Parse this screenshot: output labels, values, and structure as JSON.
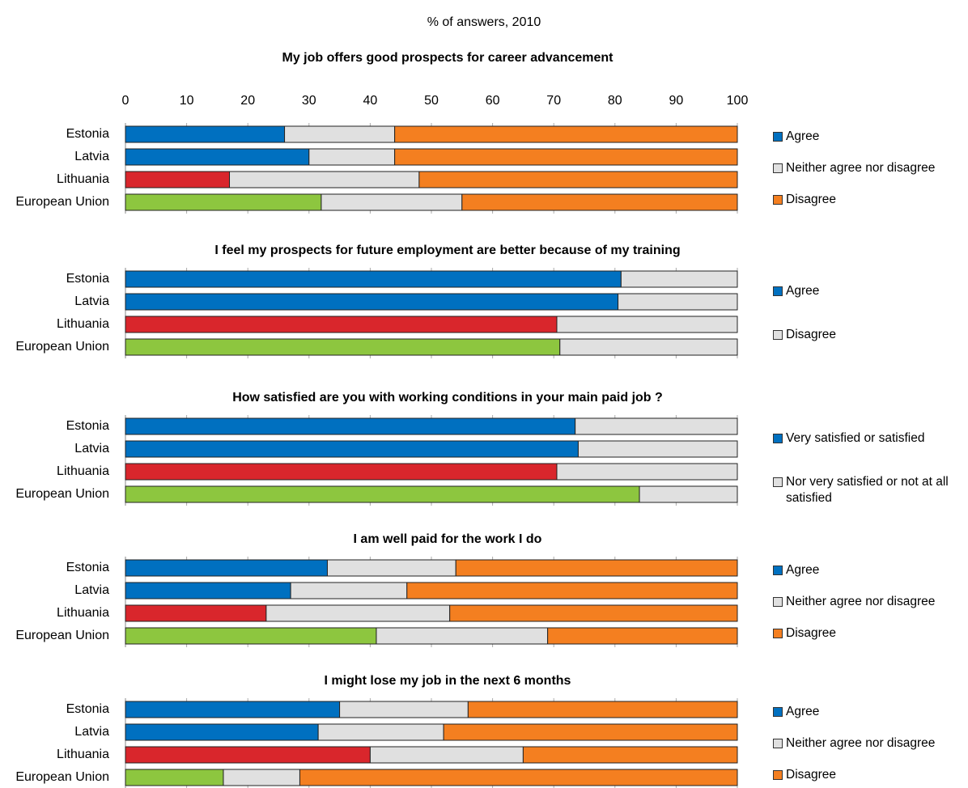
{
  "title": "% of answers, 2010",
  "chart_data": [
    {
      "type": "bar",
      "orientation": "horizontal",
      "stacked": true,
      "title": "My job offers good prospects for career advancement",
      "categories": [
        "Estonia",
        "Latvia",
        "Lithuania",
        "European Union"
      ],
      "series": [
        {
          "name": "Agree",
          "color": "#0070c0",
          "colors": [
            "#0070c0",
            "#0070c0",
            "#d9262c",
            "#8dc63f"
          ],
          "values": [
            26,
            30,
            17,
            32
          ]
        },
        {
          "name": "Neither agree nor disagree",
          "color": "#e0e0e0",
          "values": [
            18,
            14,
            31,
            23
          ]
        },
        {
          "name": "Disagree",
          "color": "#f47f20",
          "values": [
            56,
            56,
            52,
            45
          ]
        }
      ],
      "xlim": [
        0,
        100
      ],
      "xticks": [
        0,
        10,
        20,
        30,
        40,
        50,
        60,
        70,
        80,
        90,
        100
      ],
      "xtick_labels": true
    },
    {
      "type": "bar",
      "orientation": "horizontal",
      "stacked": true,
      "title": "I feel my prospects for future employment are better because of my training",
      "categories": [
        "Estonia",
        "Latvia",
        "Lithuania",
        "European Union"
      ],
      "series": [
        {
          "name": "Agree",
          "color": "#0070c0",
          "colors": [
            "#0070c0",
            "#0070c0",
            "#d9262c",
            "#8dc63f"
          ],
          "values": [
            81,
            80.5,
            70.5,
            71
          ]
        },
        {
          "name": "Disagree",
          "color": "#e0e0e0",
          "values": [
            19,
            19.5,
            29.5,
            29
          ]
        }
      ],
      "xlim": [
        0,
        100
      ],
      "xticks": [
        0,
        10,
        20,
        30,
        40,
        50,
        60,
        70,
        80,
        90,
        100
      ],
      "xtick_labels": false
    },
    {
      "type": "bar",
      "orientation": "horizontal",
      "stacked": true,
      "title": "How satisfied are you with working conditions in your main paid job ?",
      "categories": [
        "Estonia",
        "Latvia",
        "Lithuania",
        "European Union"
      ],
      "series": [
        {
          "name": "Very satisfied or satisfied",
          "color": "#0070c0",
          "colors": [
            "#0070c0",
            "#0070c0",
            "#d9262c",
            "#8dc63f"
          ],
          "values": [
            73.5,
            74,
            70.5,
            84
          ]
        },
        {
          "name": "Nor very satisfied or not at all satisfied",
          "color": "#e0e0e0",
          "values": [
            26.5,
            26,
            29.5,
            16
          ]
        }
      ],
      "xlim": [
        0,
        100
      ],
      "xticks": [
        0,
        10,
        20,
        30,
        40,
        50,
        60,
        70,
        80,
        90,
        100
      ],
      "xtick_labels": false
    },
    {
      "type": "bar",
      "orientation": "horizontal",
      "stacked": true,
      "title": "I am well paid for the work I do",
      "categories": [
        "Estonia",
        "Latvia",
        "Lithuania",
        "European Union"
      ],
      "series": [
        {
          "name": "Agree",
          "color": "#0070c0",
          "colors": [
            "#0070c0",
            "#0070c0",
            "#d9262c",
            "#8dc63f"
          ],
          "values": [
            33,
            27,
            23,
            41
          ]
        },
        {
          "name": "Neither agree nor disagree",
          "color": "#e0e0e0",
          "values": [
            21,
            19,
            30,
            28
          ]
        },
        {
          "name": "Disagree",
          "color": "#f47f20",
          "values": [
            46,
            54,
            47,
            31
          ]
        }
      ],
      "xlim": [
        0,
        100
      ],
      "xticks": [
        0,
        10,
        20,
        30,
        40,
        50,
        60,
        70,
        80,
        90,
        100
      ],
      "xtick_labels": false
    },
    {
      "type": "bar",
      "orientation": "horizontal",
      "stacked": true,
      "title": "I might lose my job in the next 6 months",
      "categories": [
        "Estonia",
        "Latvia",
        "Lithuania",
        "European Union"
      ],
      "series": [
        {
          "name": "Agree",
          "color": "#0070c0",
          "colors": [
            "#0070c0",
            "#0070c0",
            "#d9262c",
            "#8dc63f"
          ],
          "values": [
            35,
            31.5,
            40,
            16
          ]
        },
        {
          "name": "Neither agree nor disagree",
          "color": "#e0e0e0",
          "values": [
            21,
            20.5,
            25,
            12.5
          ]
        },
        {
          "name": "Disagree",
          "color": "#f47f20",
          "values": [
            44,
            48,
            35,
            71.5
          ]
        }
      ],
      "xlim": [
        0,
        100
      ],
      "xticks": [
        0,
        10,
        20,
        30,
        40,
        50,
        60,
        70,
        80,
        90,
        100
      ],
      "xtick_labels": false
    }
  ]
}
